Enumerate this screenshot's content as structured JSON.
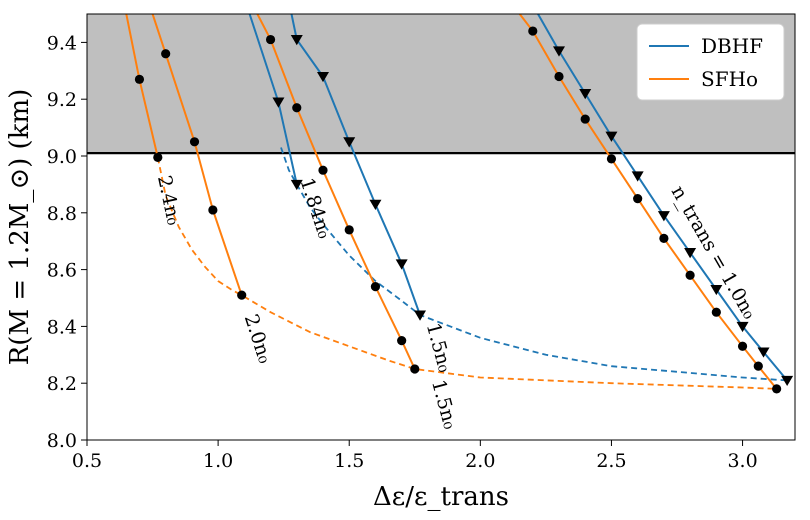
{
  "chart_data": {
    "type": "line",
    "xlabel": "Δε/ε_trans",
    "ylabel": "R(M = 1.2M_⊙) (km)",
    "xlim": [
      0.5,
      3.2
    ],
    "ylim": [
      8.0,
      9.5
    ],
    "x_ticks": [
      "0.5",
      "1.0",
      "1.5",
      "2.0",
      "2.5",
      "3.0"
    ],
    "y_ticks": [
      "8.0",
      "8.2",
      "8.4",
      "8.6",
      "8.8",
      "9.0",
      "9.2",
      "9.4"
    ],
    "shaded_region": {
      "y_min": 9.01,
      "y_max": 9.5,
      "color": "#bfbfbf"
    },
    "threshold_line": {
      "y": 9.01,
      "color": "#000000"
    },
    "legend": {
      "position": "top-right",
      "entries": [
        {
          "label": "DBHF",
          "color": "#1f77b4"
        },
        {
          "label": "SFHo",
          "color": "#ff7f0e"
        }
      ]
    },
    "series": [
      {
        "name": "SFHo",
        "label": "2.4n₀",
        "color": "#ff7f0e",
        "marker": "circle",
        "x": [
          0.65,
          0.7,
          0.77
        ],
        "y": [
          9.5,
          9.27,
          8.995
        ]
      },
      {
        "name": "SFHo",
        "label": "2.0n₀",
        "color": "#ff7f0e",
        "marker": "circle",
        "x": [
          0.75,
          0.8,
          0.91,
          0.98,
          1.09
        ],
        "y": [
          9.5,
          9.36,
          9.05,
          8.81,
          8.51
        ]
      },
      {
        "name": "DBHF",
        "label": "1.84n₀",
        "color": "#1f77b4",
        "marker": "triangle",
        "x": [
          1.12,
          1.23,
          1.3
        ],
        "y": [
          9.5,
          9.19,
          8.9
        ]
      },
      {
        "name": "SFHo",
        "label": "1.5n₀",
        "color": "#ff7f0e",
        "marker": "circle",
        "x": [
          1.15,
          1.2,
          1.3,
          1.4,
          1.5,
          1.6,
          1.7,
          1.75
        ],
        "y": [
          9.5,
          9.41,
          9.17,
          8.95,
          8.74,
          8.54,
          8.35,
          8.25
        ]
      },
      {
        "name": "DBHF",
        "label": "1.5n₀",
        "color": "#1f77b4",
        "marker": "triangle",
        "x": [
          1.28,
          1.3,
          1.4,
          1.5,
          1.6,
          1.7,
          1.77
        ],
        "y": [
          9.5,
          9.41,
          9.28,
          9.05,
          8.83,
          8.62,
          8.44
        ]
      },
      {
        "name": "SFHo",
        "label": "1.0n₀",
        "color": "#ff7f0e",
        "marker": "circle",
        "x": [
          2.15,
          2.2,
          2.3,
          2.4,
          2.5,
          2.6,
          2.7,
          2.8,
          2.9,
          3.0,
          3.06,
          3.13
        ],
        "y": [
          9.5,
          9.44,
          9.28,
          9.13,
          8.99,
          8.85,
          8.71,
          8.58,
          8.45,
          8.33,
          8.26,
          8.18
        ]
      },
      {
        "name": "DBHF",
        "label": "1.0n₀",
        "color": "#1f77b4",
        "marker": "triangle",
        "x": [
          2.22,
          2.3,
          2.4,
          2.5,
          2.6,
          2.7,
          2.8,
          2.9,
          3.0,
          3.08,
          3.17
        ],
        "y": [
          9.5,
          9.37,
          9.22,
          9.07,
          8.93,
          8.79,
          8.66,
          8.53,
          8.4,
          8.31,
          8.21
        ]
      }
    ],
    "dashed_envelopes": [
      {
        "name": "SFHo",
        "color": "#ff7f0e",
        "x": [
          0.77,
          0.8,
          0.85,
          0.9,
          0.95,
          1.0,
          1.05,
          1.09,
          1.2,
          1.35,
          1.5,
          1.65,
          1.75,
          2.0,
          2.5,
          3.0,
          3.13
        ],
        "y": [
          8.995,
          8.86,
          8.75,
          8.67,
          8.61,
          8.56,
          8.53,
          8.51,
          8.45,
          8.38,
          8.33,
          8.28,
          8.25,
          8.22,
          8.2,
          8.185,
          8.18
        ]
      },
      {
        "name": "DBHF",
        "color": "#1f77b4",
        "x": [
          1.24,
          1.27,
          1.3,
          1.35,
          1.4,
          1.5,
          1.6,
          1.7,
          1.77,
          2.0,
          2.25,
          2.5,
          2.75,
          3.0,
          3.17
        ],
        "y": [
          9.03,
          8.95,
          8.9,
          8.82,
          8.76,
          8.65,
          8.56,
          8.49,
          8.44,
          8.36,
          8.3,
          8.26,
          8.24,
          8.22,
          8.21
        ]
      }
    ],
    "annotations": [
      {
        "text": "2.4n₀",
        "x": 0.79,
        "y": 8.84,
        "angle": 78
      },
      {
        "text": "2.0n₀",
        "x": 1.13,
        "y": 8.35,
        "angle": 72
      },
      {
        "text": "1.84n₀",
        "x": 1.35,
        "y": 8.81,
        "angle": 72
      },
      {
        "text": "1.5n₀",
        "x": 1.82,
        "y": 8.32,
        "angle": 75
      },
      {
        "text": "1.5n₀",
        "x": 1.84,
        "y": 8.12,
        "angle": 75
      },
      {
        "text": "n_trans = 1.0n₀",
        "x": 2.87,
        "y": 8.65,
        "angle": 60
      }
    ]
  }
}
